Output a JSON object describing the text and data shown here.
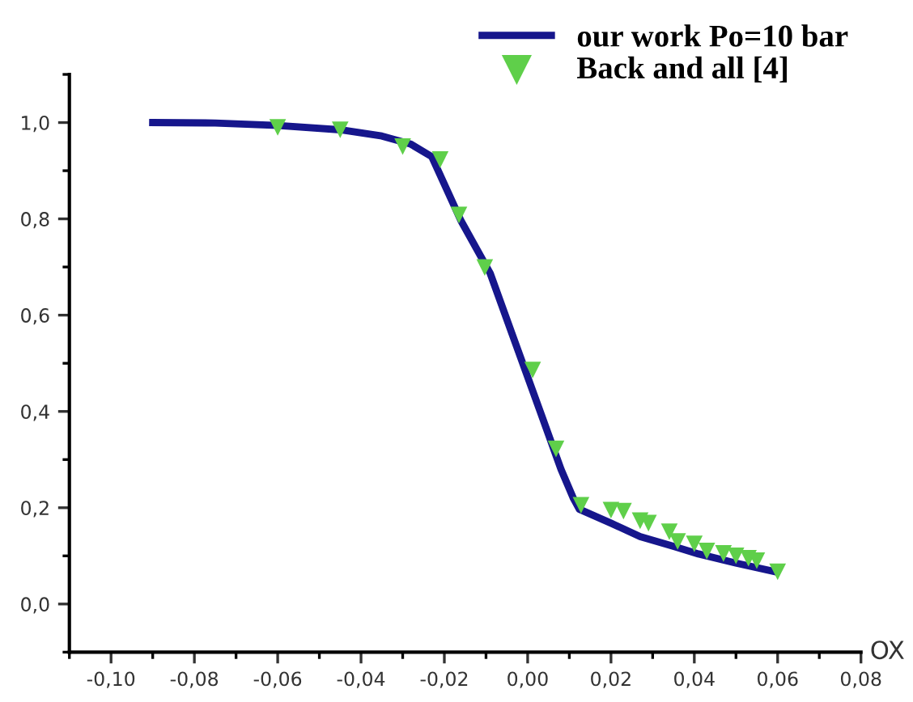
{
  "chart_data": {
    "type": "line",
    "xlabel": "OX",
    "legend": "top right",
    "xlim": [
      -0.11,
      0.08
    ],
    "ylim": [
      -0.1,
      1.1
    ],
    "xticks": [
      {
        "value": -0.1,
        "label": "-0,10"
      },
      {
        "value": -0.08,
        "label": "-0,08"
      },
      {
        "value": -0.06,
        "label": "-0,06"
      },
      {
        "value": -0.04,
        "label": "-0,04"
      },
      {
        "value": -0.02,
        "label": "-0,02"
      },
      {
        "value": 0,
        "label": "0,00"
      },
      {
        "value": 0.02,
        "label": "0,02"
      },
      {
        "value": 0.04,
        "label": "0,04"
      },
      {
        "value": 0.06,
        "label": "0,06"
      },
      {
        "value": 0.08,
        "label": "0,08"
      }
    ],
    "yticks": [
      {
        "value": 0,
        "label": "0,0"
      },
      {
        "value": 0.2,
        "label": "0,2"
      },
      {
        "value": 0.4,
        "label": "0,4"
      },
      {
        "value": 0.6,
        "label": "0,6"
      },
      {
        "value": 0.8,
        "label": "0,8"
      },
      {
        "value": 1.0,
        "label": "1,0"
      }
    ],
    "series": [
      {
        "name": "our work Po=10 bar",
        "color": "#16168c",
        "marker": "none",
        "x": [
          -0.09,
          -0.075,
          -0.06,
          -0.045,
          -0.035,
          -0.028,
          -0.023,
          -0.016,
          -0.009,
          -0.0037,
          0.003,
          0.008,
          0.011,
          0.0124,
          0.02,
          0.027,
          0.035,
          0.041,
          0.05,
          0.059
        ],
        "values": [
          1.0,
          0.999,
          0.994,
          0.985,
          0.972,
          0.955,
          0.929,
          0.796,
          0.687,
          0.56,
          0.4,
          0.28,
          0.219,
          0.197,
          0.168,
          0.14,
          0.12,
          0.104,
          0.085,
          0.068
        ]
      },
      {
        "name": "Back and all [4]",
        "type": "scatter",
        "color": "#5fcf4a",
        "marker": "triangle",
        "x": [
          -0.06,
          -0.045,
          -0.03,
          -0.021,
          -0.0165,
          -0.0103,
          0.0012,
          0.0068,
          0.0128,
          0.02,
          0.023,
          0.027,
          0.029,
          0.034,
          0.036,
          0.04,
          0.043,
          0.047,
          0.05,
          0.053,
          0.055,
          0.06
        ],
        "values": [
          0.99,
          0.985,
          0.95,
          0.923,
          0.808,
          0.699,
          0.486,
          0.322,
          0.205,
          0.195,
          0.193,
          0.173,
          0.168,
          0.15,
          0.13,
          0.125,
          0.11,
          0.105,
          0.1,
          0.095,
          0.09,
          0.067
        ]
      }
    ]
  }
}
